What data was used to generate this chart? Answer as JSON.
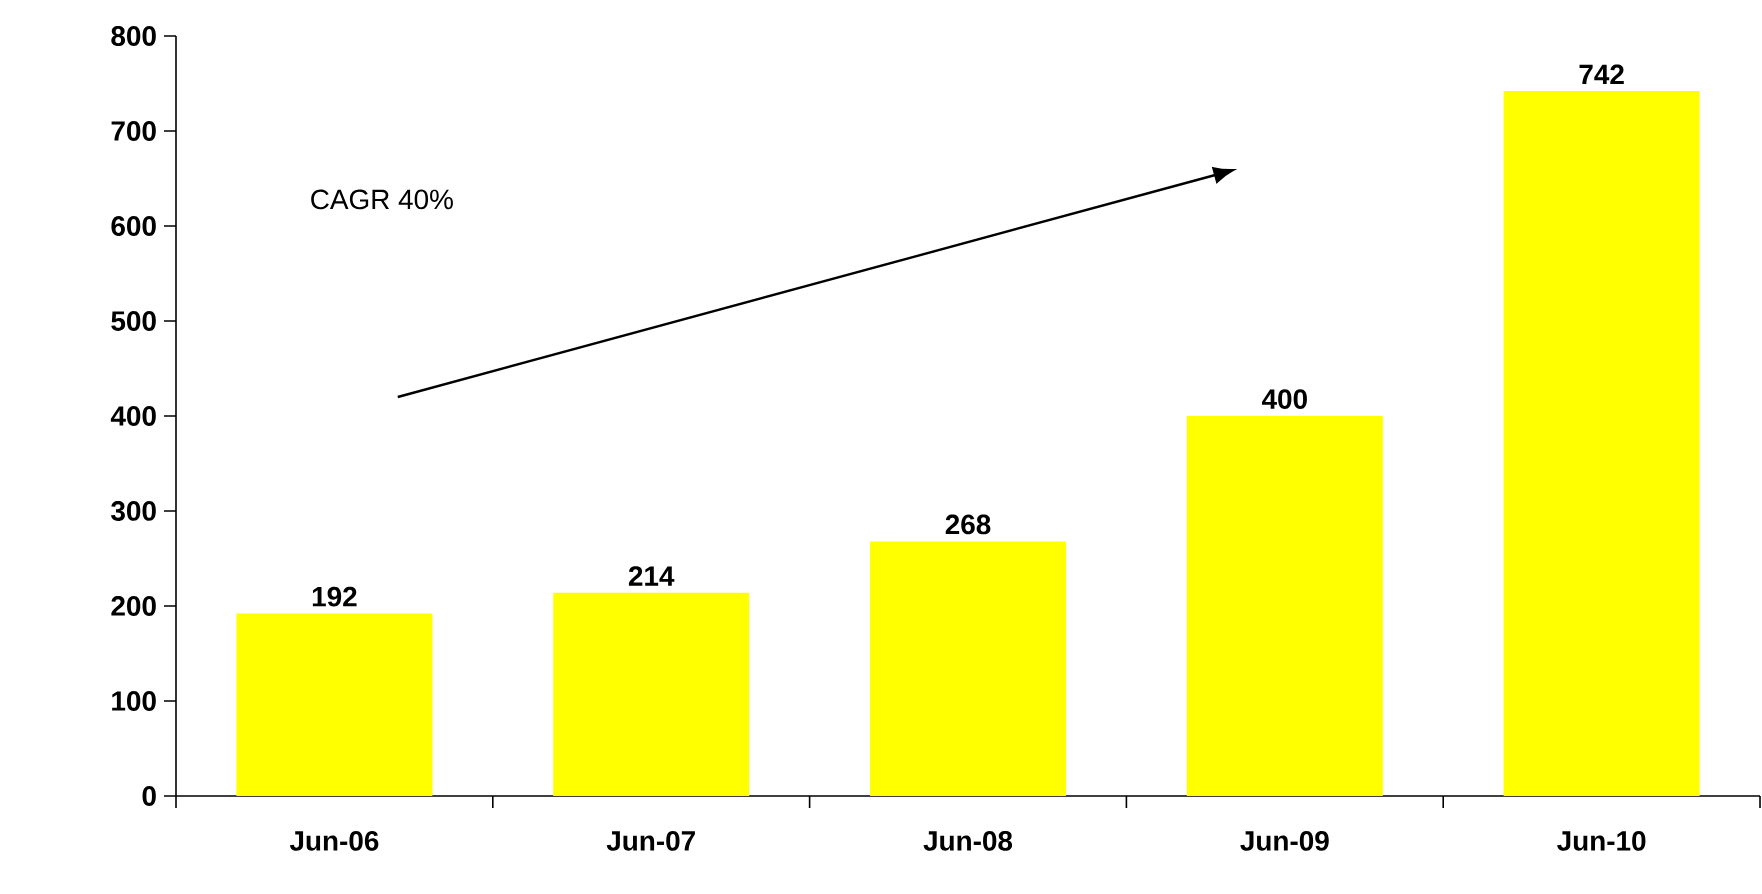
{
  "chart_data": {
    "type": "bar",
    "categories": [
      "Jun-06",
      "Jun-07",
      "Jun-08",
      "Jun-09",
      "Jun-10"
    ],
    "values": [
      192,
      214,
      268,
      400,
      742
    ],
    "color": "#ffff00",
    "ylim": [
      0,
      800
    ],
    "yticks": [
      0,
      100,
      200,
      300,
      400,
      500,
      600,
      700,
      800
    ],
    "data_labels": true,
    "annotations": [
      "CAGR 40%"
    ]
  }
}
